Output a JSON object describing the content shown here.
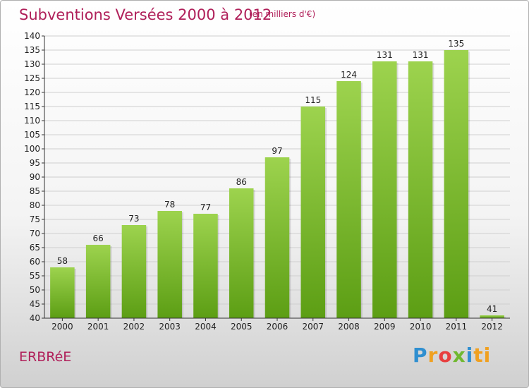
{
  "title": "Subventions Versées 2000 à 2012",
  "unit": "(en milliers d'€)",
  "commune": "ERBRéE",
  "brand": [
    "P",
    "r",
    "o",
    "x",
    "i",
    "ti"
  ],
  "colors": {
    "bar_top": "#9dd34e",
    "bar_bottom": "#5c9e14",
    "grid": "#cfcfcf",
    "axis": "#333333",
    "title": "#b0205a"
  },
  "chart_data": {
    "type": "bar",
    "title": "Subventions Versées 2000 à 2012",
    "categories": [
      "2000",
      "2001",
      "2002",
      "2003",
      "2004",
      "2005",
      "2006",
      "2007",
      "2008",
      "2009",
      "2010",
      "2011",
      "2012"
    ],
    "values": [
      58,
      66,
      73,
      78,
      77,
      86,
      97,
      115,
      124,
      131,
      131,
      135,
      41
    ],
    "ylim": [
      40,
      140
    ],
    "yticks": [
      40,
      45,
      50,
      55,
      60,
      65,
      70,
      75,
      80,
      85,
      90,
      95,
      100,
      105,
      110,
      115,
      120,
      125,
      130,
      135,
      140
    ],
    "grid": true
  }
}
